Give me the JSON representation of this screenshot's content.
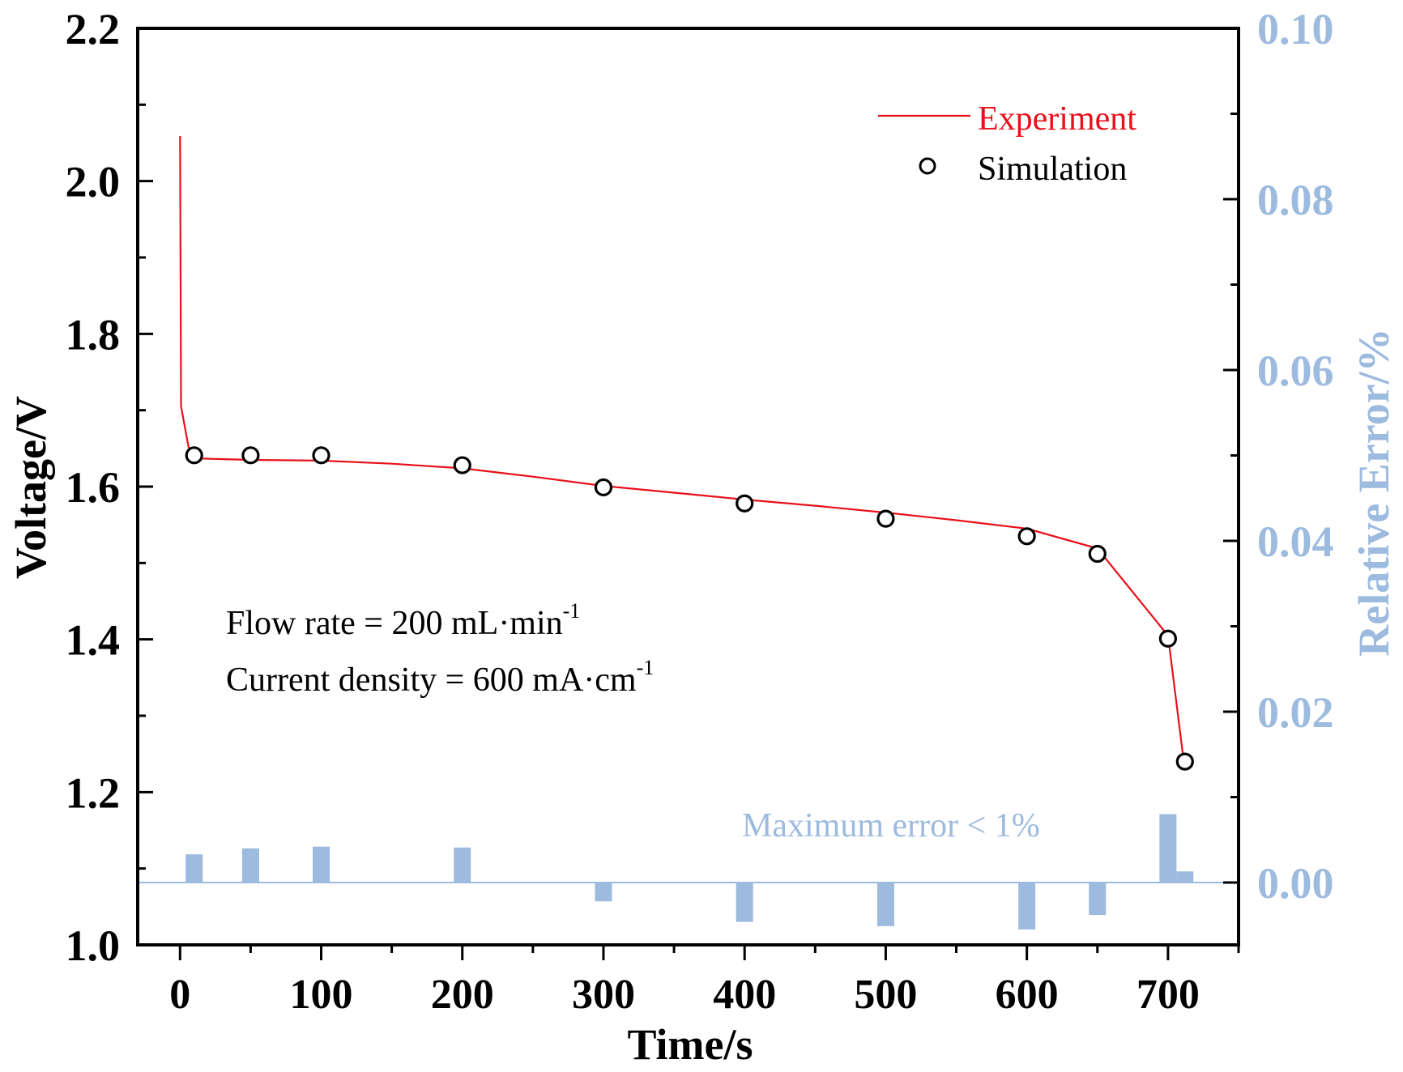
{
  "chart_data": {
    "type": "line",
    "title": "",
    "xlabel": "Time/s",
    "ylabel": "Voltage/V",
    "ylabel_right": "Relative Error/%",
    "xlim": [
      -30,
      750
    ],
    "ylim": [
      1.0,
      2.2
    ],
    "ylim_right": [
      -0.0073,
      0.1
    ],
    "x_ticks": [
      0,
      100,
      200,
      300,
      400,
      500,
      600,
      700
    ],
    "x_tick_labels": [
      "0",
      "100",
      "200",
      "300",
      "400",
      "500",
      "600",
      "700"
    ],
    "x_minor_ticks": [
      50,
      150,
      250,
      350,
      450,
      550,
      650,
      750
    ],
    "y_ticks": [
      1.0,
      1.2,
      1.4,
      1.6,
      1.8,
      2.0,
      2.2
    ],
    "y_tick_labels": [
      "1.0",
      "1.2",
      "1.4",
      "1.6",
      "1.8",
      "2.0",
      "2.2"
    ],
    "y_minor_ticks": [
      1.1,
      1.3,
      1.5,
      1.7,
      1.9,
      2.1
    ],
    "y_right_ticks": [
      0.0,
      0.02,
      0.04,
      0.06,
      0.08,
      0.1
    ],
    "y_right_tick_labels": [
      "0.00",
      "0.02",
      "0.04",
      "0.06",
      "0.08",
      "0.10"
    ],
    "y_right_minor_ticks": [
      0.01,
      0.03,
      0.05,
      0.07,
      0.09
    ],
    "grid": false,
    "legend_position": "top-right",
    "colors": {
      "experiment": "#e8101a",
      "simulation": "#000000",
      "error": "#9dbadf",
      "axis": "#000000"
    },
    "series": [
      {
        "name": "Experiment",
        "kind": "line",
        "axis": "left",
        "x": [
          0,
          0.7,
          6,
          10,
          50,
          100,
          150,
          200,
          250,
          300,
          350,
          400,
          450,
          500,
          550,
          600,
          650,
          700,
          710.5
        ],
        "y": [
          2.059,
          1.705,
          1.652,
          1.637,
          1.635,
          1.634,
          1.63,
          1.624,
          1.613,
          1.601,
          1.592,
          1.583,
          1.575,
          1.566,
          1.556,
          1.545,
          1.519,
          1.405,
          1.25
        ]
      },
      {
        "name": "Simulation",
        "kind": "scatter",
        "marker": "open-circle",
        "axis": "left",
        "x": [
          10,
          50,
          100,
          200,
          300,
          400,
          500,
          600,
          650,
          700,
          712
        ],
        "y": [
          1.641,
          1.641,
          1.641,
          1.628,
          1.599,
          1.578,
          1.558,
          1.535,
          1.512,
          1.401,
          1.24
        ]
      },
      {
        "name": "Relative Error",
        "kind": "bar",
        "axis": "right",
        "x": [
          10,
          50,
          100,
          200,
          300,
          400,
          500,
          600,
          650,
          700,
          712
        ],
        "values": [
          0.0033,
          0.004,
          0.0042,
          0.0041,
          -0.0022,
          -0.0046,
          -0.0051,
          -0.0055,
          -0.0038,
          0.008,
          0.0013
        ]
      }
    ],
    "legend": [
      {
        "label": "Experiment",
        "symbol": "line"
      },
      {
        "label": "Simulation",
        "symbol": "open-circle"
      }
    ],
    "annotations": {
      "flow_rate": {
        "text": "Flow rate = 200 mL·min",
        "sup": "-1"
      },
      "current_density": {
        "text": "Current density = 600 mA·cm",
        "sup": "-1"
      },
      "max_error": "Maximum error < 1%"
    }
  }
}
